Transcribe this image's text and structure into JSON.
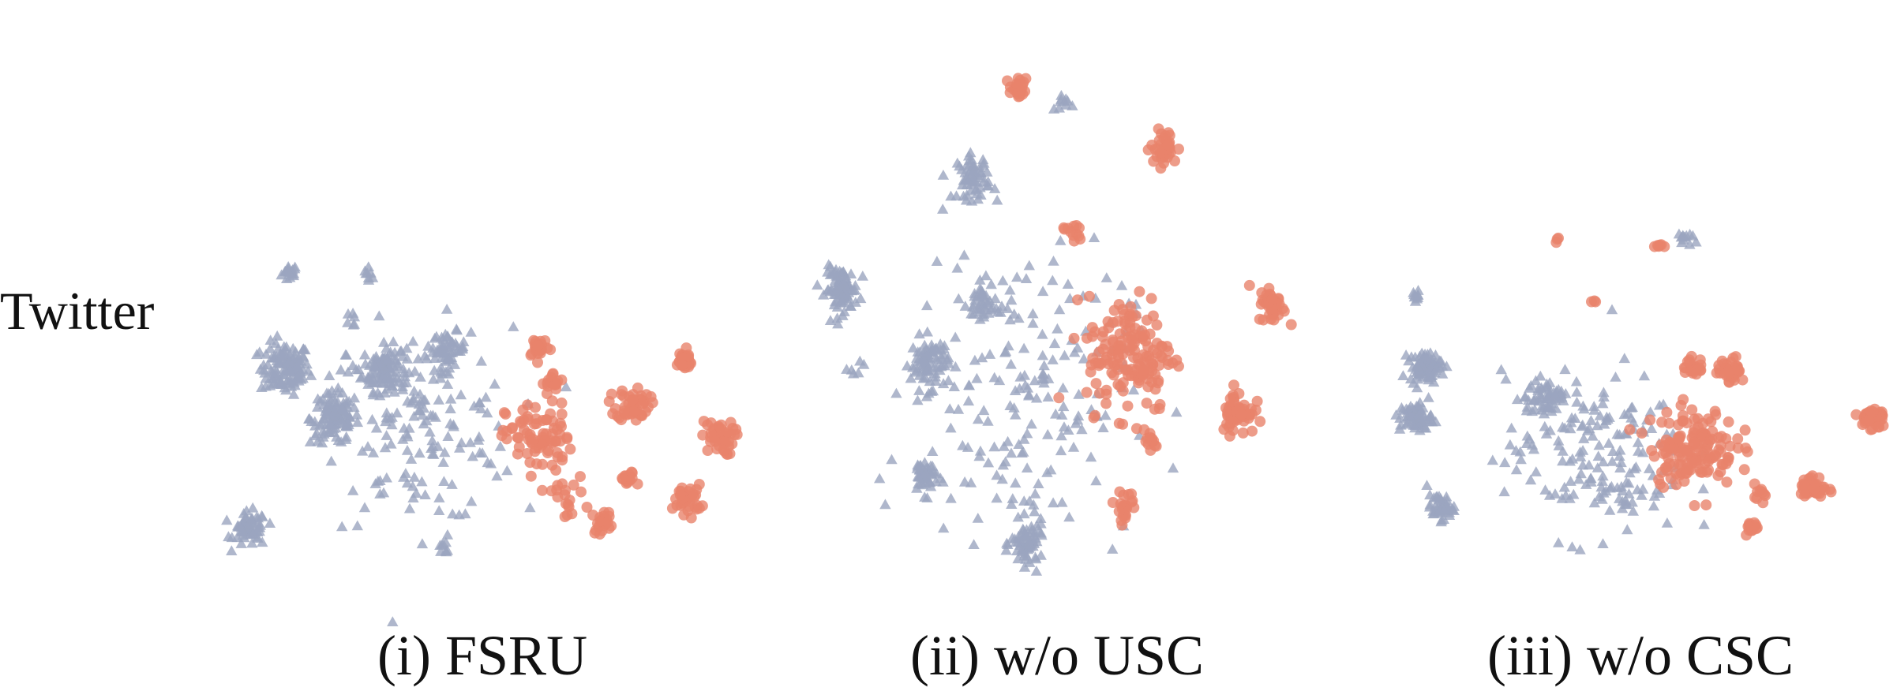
{
  "row_label": "Twitter",
  "captions": [
    "(i) FSRU",
    "(ii) w/o USC",
    "(iii) w/o CSC"
  ],
  "colors": {
    "class_a": "#9ba5bf",
    "class_b": "#e8836c"
  },
  "chart_data": [
    {
      "type": "scatter",
      "title": "(i) FSRU",
      "xlabel": "",
      "ylabel": "",
      "grid": false,
      "axes_visible": false,
      "xlim": [
        0,
        100
      ],
      "ylim": [
        0,
        100
      ],
      "series": [
        {
          "marker": "triangle",
          "color": "#9ba5bf",
          "clusters": [
            {
              "x": 11,
              "y": 77,
              "spread": 1.5,
              "n": 18
            },
            {
              "x": 27,
              "y": 77,
              "spread": 1,
              "n": 8
            },
            {
              "x": 10,
              "y": 52,
              "spread": 4.5,
              "n": 120
            },
            {
              "x": 30,
              "y": 52,
              "spread": 4,
              "n": 100
            },
            {
              "x": 43,
              "y": 57,
              "spread": 3,
              "n": 50
            },
            {
              "x": 20,
              "y": 39,
              "spread": 4.5,
              "n": 110
            },
            {
              "x": 3,
              "y": 10,
              "spread": 3,
              "n": 60
            },
            {
              "x": 37,
              "y": 37,
              "spread": 17,
              "n": 160
            },
            {
              "x": 42,
              "y": 5,
              "spread": 1.5,
              "n": 8
            },
            {
              "x": 24,
              "y": 65,
              "spread": 1.5,
              "n": 6
            }
          ]
        },
        {
          "marker": "circle",
          "color": "#e8836c",
          "clusters": [
            {
              "x": 61,
              "y": 58,
              "spread": 2,
              "n": 22
            },
            {
              "x": 64,
              "y": 48,
              "spread": 2,
              "n": 18
            },
            {
              "x": 80,
              "y": 43,
              "spread": 3,
              "n": 50
            },
            {
              "x": 90,
              "y": 54,
              "spread": 2,
              "n": 25
            },
            {
              "x": 97,
              "y": 34,
              "spread": 3,
              "n": 45
            },
            {
              "x": 61,
              "y": 34,
              "spread": 6,
              "n": 80
            },
            {
              "x": 79,
              "y": 23,
              "spread": 1.5,
              "n": 14
            },
            {
              "x": 91,
              "y": 18,
              "spread": 2.5,
              "n": 40
            },
            {
              "x": 74,
              "y": 12,
              "spread": 2,
              "n": 22
            },
            {
              "x": 66,
              "y": 19,
              "spread": 4,
              "n": 20
            }
          ]
        }
      ]
    },
    {
      "type": "scatter",
      "title": "(ii) w/o USC",
      "xlabel": "",
      "ylabel": "",
      "grid": false,
      "axes_visible": false,
      "xlim": [
        0,
        100
      ],
      "ylim": [
        0,
        100
      ],
      "series": [
        {
          "marker": "triangle",
          "color": "#9ba5bf",
          "clusters": [
            {
              "x": 5,
              "y": 56,
              "spread": 3,
              "n": 90
            },
            {
              "x": 32,
              "y": 79,
              "spread": 3,
              "n": 60
            },
            {
              "x": 23,
              "y": 41,
              "spread": 3.5,
              "n": 80
            },
            {
              "x": 22,
              "y": 18,
              "spread": 2.5,
              "n": 45
            },
            {
              "x": 43,
              "y": 4,
              "spread": 3,
              "n": 70
            },
            {
              "x": 34,
              "y": 53,
              "spread": 3,
              "n": 40
            },
            {
              "x": 42,
              "y": 35,
              "spread": 20,
              "n": 180
            },
            {
              "x": 50,
              "y": 94,
              "spread": 1.5,
              "n": 10
            },
            {
              "x": 8,
              "y": 40,
              "spread": 1.5,
              "n": 6
            }
          ]
        },
        {
          "marker": "circle",
          "color": "#e8836c",
          "clusters": [
            {
              "x": 41,
              "y": 97,
              "spread": 1.5,
              "n": 22
            },
            {
              "x": 71,
              "y": 85,
              "spread": 2.5,
              "n": 40
            },
            {
              "x": 64,
              "y": 43,
              "spread": 8,
              "n": 160
            },
            {
              "x": 93,
              "y": 53,
              "spread": 2.5,
              "n": 40
            },
            {
              "x": 86,
              "y": 31,
              "spread": 3,
              "n": 55
            },
            {
              "x": 63,
              "y": 12,
              "spread": 2,
              "n": 24
            },
            {
              "x": 68,
              "y": 25,
              "spread": 1.5,
              "n": 12
            },
            {
              "x": 52,
              "y": 68,
              "spread": 2,
              "n": 12
            }
          ]
        }
      ]
    },
    {
      "type": "scatter",
      "title": "(iii) w/o CSC",
      "xlabel": "",
      "ylabel": "",
      "grid": false,
      "axes_visible": false,
      "xlim": [
        0,
        100
      ],
      "ylim": [
        0,
        100
      ],
      "series": [
        {
          "marker": "triangle",
          "color": "#9ba5bf",
          "clusters": [
            {
              "x": 3,
              "y": 80,
              "spread": 1.5,
              "n": 10
            },
            {
              "x": 5,
              "y": 58,
              "spread": 3,
              "n": 80
            },
            {
              "x": 3,
              "y": 42,
              "spread": 3,
              "n": 70
            },
            {
              "x": 8,
              "y": 14,
              "spread": 2.5,
              "n": 45
            },
            {
              "x": 30,
              "y": 48,
              "spread": 4,
              "n": 60
            },
            {
              "x": 58,
              "y": 98,
              "spread": 1.5,
              "n": 12
            },
            {
              "x": 40,
              "y": 30,
              "spread": 17,
              "n": 170
            }
          ]
        },
        {
          "marker": "circle",
          "color": "#e8836c",
          "clusters": [
            {
              "x": 53,
              "y": 96,
              "spread": 1,
              "n": 6
            },
            {
              "x": 60,
              "y": 58,
              "spread": 2,
              "n": 25
            },
            {
              "x": 68,
              "y": 57,
              "spread": 2.5,
              "n": 35
            },
            {
              "x": 60,
              "y": 33,
              "spread": 8,
              "n": 150
            },
            {
              "x": 97,
              "y": 42,
              "spread": 2.5,
              "n": 40
            },
            {
              "x": 85,
              "y": 20,
              "spread": 2.5,
              "n": 40
            },
            {
              "x": 72,
              "y": 8,
              "spread": 1.5,
              "n": 15
            },
            {
              "x": 74,
              "y": 19,
              "spread": 1.5,
              "n": 10
            },
            {
              "x": 32,
              "y": 98,
              "spread": 0.8,
              "n": 3
            },
            {
              "x": 40,
              "y": 78,
              "spread": 0.8,
              "n": 3
            }
          ]
        }
      ]
    }
  ]
}
